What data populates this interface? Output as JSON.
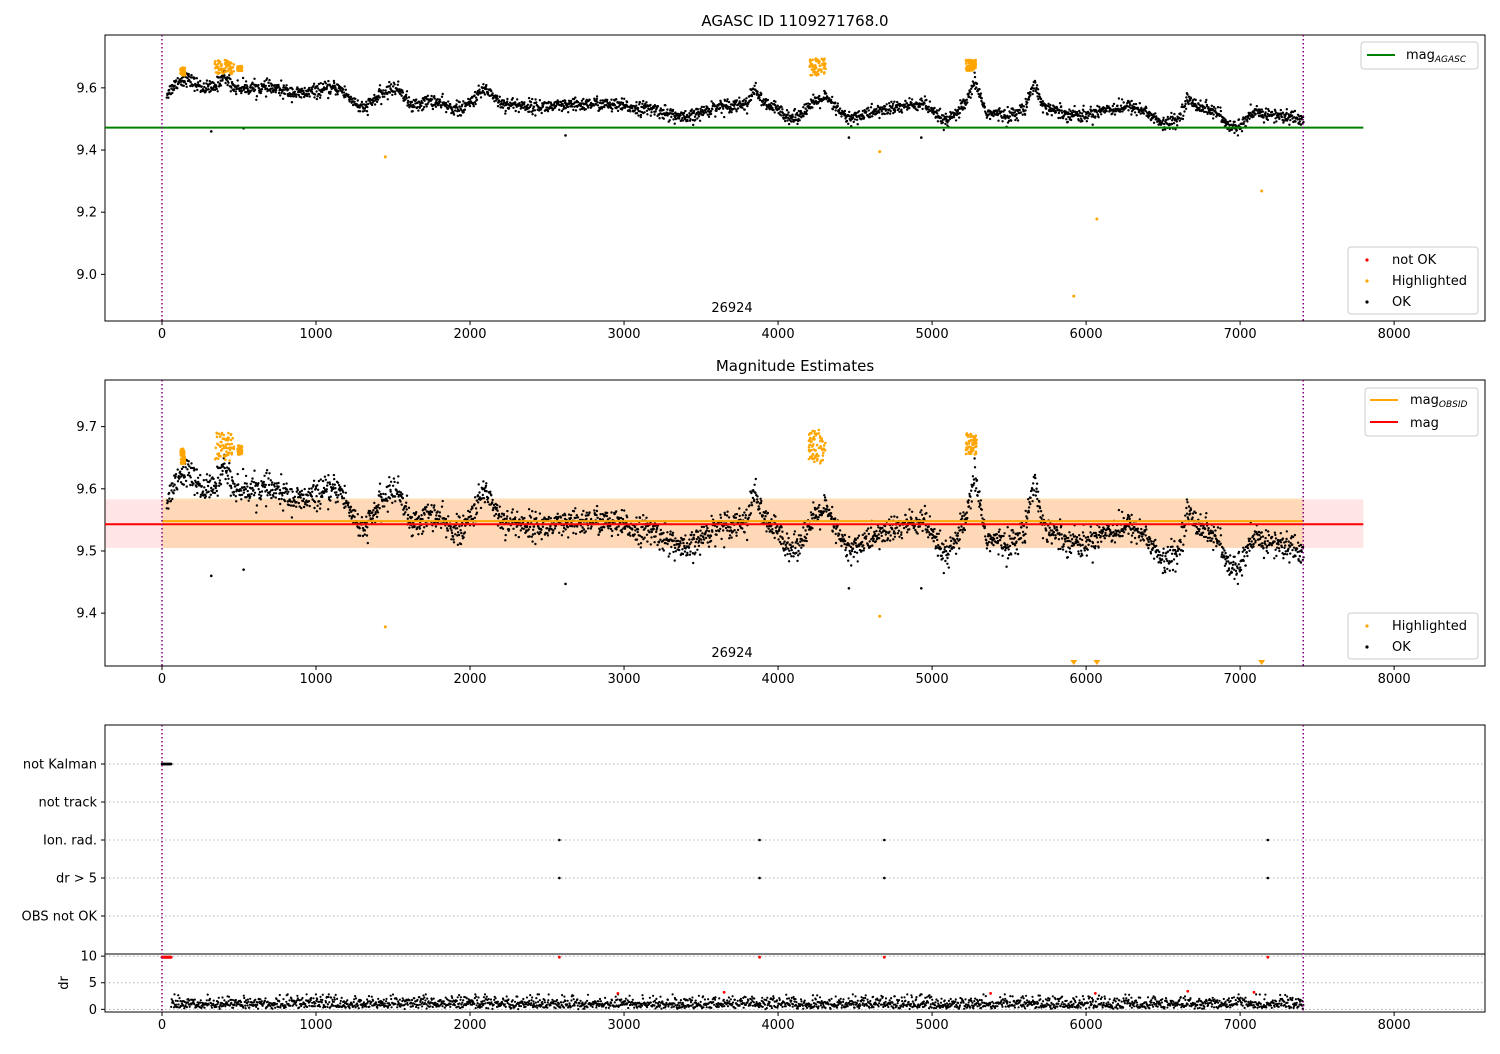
{
  "chart_data": [
    {
      "type": "scatter",
      "title": "AGASC ID 1109271768.0",
      "xlim": [
        -370,
        8590
      ],
      "ylim": [
        8.85,
        9.77
      ],
      "x_ticks": [
        "0",
        "1000",
        "2000",
        "3000",
        "4000",
        "5000",
        "6000",
        "7000",
        "8000"
      ],
      "y_ticks": [
        "9.0",
        "9.2",
        "9.4",
        "9.6"
      ],
      "obsid_label": "26924",
      "obsid_bounds": [
        0,
        7410
      ],
      "mag_agasc": 9.472,
      "legend_lines": [
        {
          "label": "mag",
          "sub": "AGASC",
          "color": "#008000"
        }
      ],
      "legend_points": [
        {
          "label": "not OK",
          "color": "#ff0000"
        },
        {
          "label": "Highlighted",
          "color": "#ffa500"
        },
        {
          "label": "OK",
          "color": "#000000"
        }
      ],
      "highlight_clusters": [
        {
          "x": [
            120,
            150
          ],
          "y": [
            9.64,
            9.665
          ]
        },
        {
          "x": [
            340,
            470
          ],
          "y": [
            9.645,
            9.69
          ]
        },
        {
          "x": [
            490,
            520
          ],
          "y": [
            9.655,
            9.67
          ]
        },
        {
          "x": [
            4200,
            4310
          ],
          "y": [
            9.64,
            9.695
          ]
        },
        {
          "x": [
            5220,
            5290
          ],
          "y": [
            9.655,
            9.69
          ]
        }
      ],
      "outliers_ok": [
        {
          "x": 320,
          "y": 9.46
        },
        {
          "x": 530,
          "y": 9.47
        },
        {
          "x": 2620,
          "y": 9.447
        },
        {
          "x": 4460,
          "y": 9.44
        },
        {
          "x": 4930,
          "y": 9.44
        }
      ],
      "outliers_highlighted": [
        {
          "x": 1450,
          "y": 9.378
        },
        {
          "x": 4660,
          "y": 9.395
        },
        {
          "x": 5920,
          "y": 8.93
        },
        {
          "x": 6070,
          "y": 9.178
        },
        {
          "x": 7140,
          "y": 9.268
        }
      ]
    },
    {
      "type": "scatter",
      "title": "Magnitude Estimates",
      "xlim": [
        -370,
        8590
      ],
      "ylim": [
        9.315,
        9.775
      ],
      "x_ticks": [
        "0",
        "1000",
        "2000",
        "3000",
        "4000",
        "5000",
        "6000",
        "7000",
        "8000"
      ],
      "y_ticks": [
        "9.4",
        "9.5",
        "9.6",
        "9.7"
      ],
      "obsid_label": "26924",
      "obsid_bounds": [
        0,
        7410
      ],
      "mag": 9.543,
      "mag_band": [
        9.505,
        9.583
      ],
      "mag_obsid": 9.548,
      "mag_obsid_band": [
        9.505,
        9.585
      ],
      "legend_lines": [
        {
          "label": "mag",
          "sub": "OBSID",
          "color": "#ffa500"
        },
        {
          "label": "mag",
          "sub": "",
          "color": "#ff0000"
        }
      ],
      "legend_points": [
        {
          "label": "Highlighted",
          "color": "#ffa500"
        },
        {
          "label": "OK",
          "color": "#000000"
        }
      ],
      "off_scale_markers_x": [
        5920,
        6070,
        7140
      ]
    },
    {
      "type": "scatter",
      "xlim": [
        -370,
        8590
      ],
      "flag_categories": [
        "not Kalman",
        "not track",
        "Ion. rad.",
        "dr > 5",
        "OBS not OK"
      ],
      "flag_points": {
        "not Kalman": [
          [
            0,
            60
          ]
        ],
        "Ion. rad.": [
          2580,
          3880,
          4690,
          7180
        ],
        "dr > 5": [
          2580,
          3880,
          4690,
          7180
        ]
      },
      "dr_ylabel": "dr",
      "dr_ylim": [
        -0.5,
        10.4
      ],
      "dr_ticks": [
        "0",
        "5",
        "10"
      ],
      "dr_outliers_red": [
        {
          "x": 2580,
          "y": 9.8
        },
        {
          "x": 3880,
          "y": 9.8
        },
        {
          "x": 4690,
          "y": 9.8
        },
        {
          "x": 7180,
          "y": 9.8
        },
        {
          "x": 2960,
          "y": 3.0
        },
        {
          "x": 3650,
          "y": 3.2
        },
        {
          "x": 5380,
          "y": 3.0
        },
        {
          "x": 6060,
          "y": 3.0
        },
        {
          "x": 6660,
          "y": 3.4
        },
        {
          "x": 7090,
          "y": 3.2
        }
      ],
      "x_ticks": [
        "0",
        "1000",
        "2000",
        "3000",
        "4000",
        "5000",
        "6000",
        "7000",
        "8000"
      ]
    }
  ]
}
